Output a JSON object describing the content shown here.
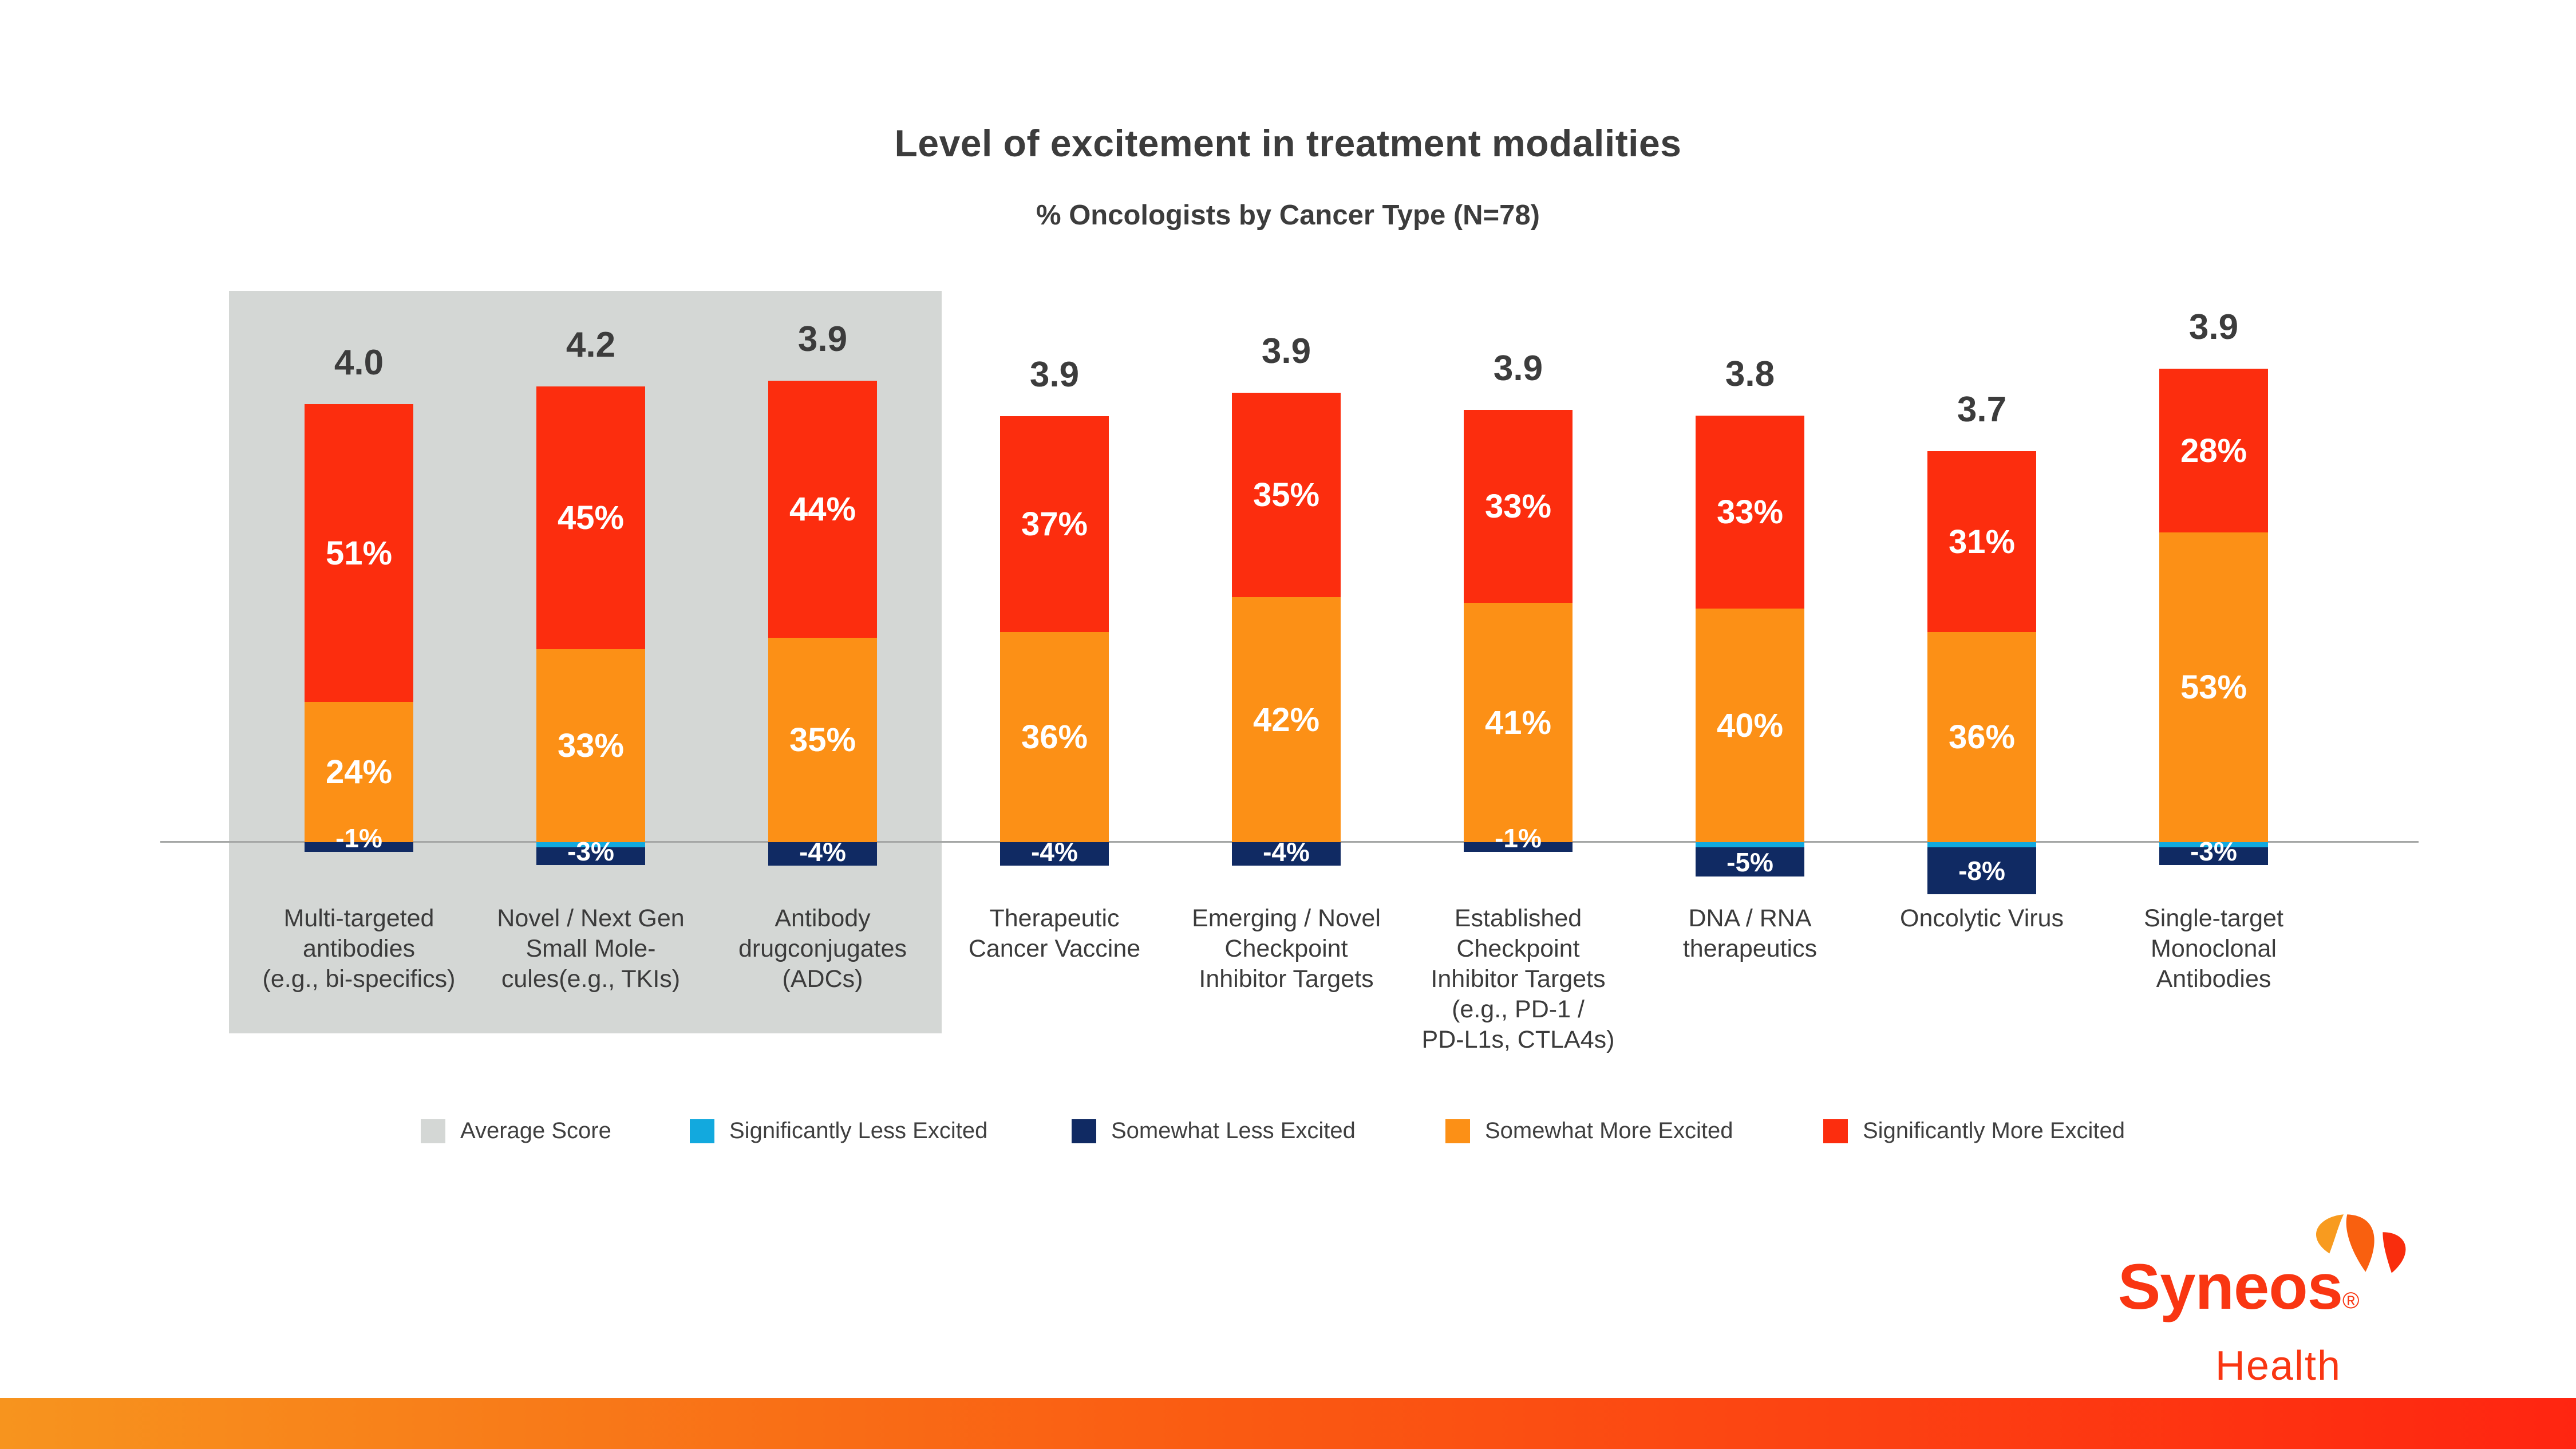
{
  "header": {
    "title": "Level of excitement in treatment modalities",
    "subtitle": "% Oncologists by Cancer Type (N=78)"
  },
  "chart_data": {
    "type": "bar",
    "stacked": true,
    "title": "Level of excitement in treatment modalities",
    "subtitle": "% Oncologists by Cancer Type (N=78)",
    "xlabel": "",
    "ylabel": "",
    "grid": false,
    "legend_position": "bottom",
    "baseline": 0,
    "categories": [
      [
        "Multi-targeted",
        "antibodies",
        "(e.g., bi-specifics)"
      ],
      [
        "Novel / Next Gen",
        "Small Mole-",
        "cules(e.g., TKIs)"
      ],
      [
        "Antibody",
        "drugconjugates",
        "(ADCs)"
      ],
      [
        "Therapeutic",
        "Cancer Vaccine"
      ],
      [
        "Emerging / Novel",
        "Checkpoint",
        "Inhibitor Targets"
      ],
      [
        "Established",
        "Checkpoint",
        "Inhibitor Targets",
        "(e.g., PD-1 /",
        "PD-L1s, CTLA4s)"
      ],
      [
        "DNA / RNA",
        "therapeutics"
      ],
      [
        "Oncolytic Virus"
      ],
      [
        "Single-target",
        "Monoclonal",
        "Antibodies"
      ]
    ],
    "average_scores": [
      "4.0",
      "4.2",
      "3.9",
      "3.9",
      "3.9",
      "3.9",
      "3.8",
      "3.7",
      "3.9"
    ],
    "series": [
      {
        "name": "Significantly More Excited",
        "color": "#FC2D0E",
        "values": [
          51,
          45,
          44,
          37,
          35,
          33,
          33,
          31,
          28
        ],
        "labeled": true
      },
      {
        "name": "Somewhat More Excited",
        "color": "#FC9016",
        "values": [
          24,
          33,
          35,
          36,
          42,
          41,
          40,
          36,
          53
        ],
        "labeled": true
      },
      {
        "name": "Significantly Less Excited",
        "color": "#12A9DE",
        "values": [
          0,
          -1,
          0,
          0,
          0,
          0,
          -1,
          -1,
          -1
        ],
        "labeled": false
      },
      {
        "name": "Somewhat Less Excited",
        "color": "#102A63",
        "values": [
          -1,
          -3,
          -4,
          -4,
          -4,
          -1,
          -5,
          -8,
          -3
        ],
        "labeled": true
      }
    ],
    "highlight_group": {
      "bar_indices": [
        0,
        1,
        2
      ],
      "color": "#D4D7D5",
      "meaning": "Average Score"
    }
  },
  "legend": {
    "items": [
      {
        "label": "Average Score",
        "color": "#D4D7D5"
      },
      {
        "label": "Significantly Less Excited",
        "color": "#12A9DE"
      },
      {
        "label": "Somewhat Less Excited",
        "color": "#102A63"
      },
      {
        "label": "Somewhat More Excited",
        "color": "#FC9016"
      },
      {
        "label": "Significantly More Excited",
        "color": "#FC2D0E"
      }
    ]
  },
  "logo": {
    "brand": "Syneos",
    "registered": "®",
    "sub": "Health",
    "text_color": "#F93612",
    "mark_colors": {
      "left": "#F89B1F",
      "middle": "#F9600F",
      "right": "#F92D0D"
    }
  },
  "colors": {
    "text_dark": "#3C3C3C",
    "baseline_line": "#A5A7A6",
    "highlight_box": "#D4D7D5",
    "footer_gradient_left": "#F7941E",
    "footer_gradient_right": "#FF2511"
  }
}
